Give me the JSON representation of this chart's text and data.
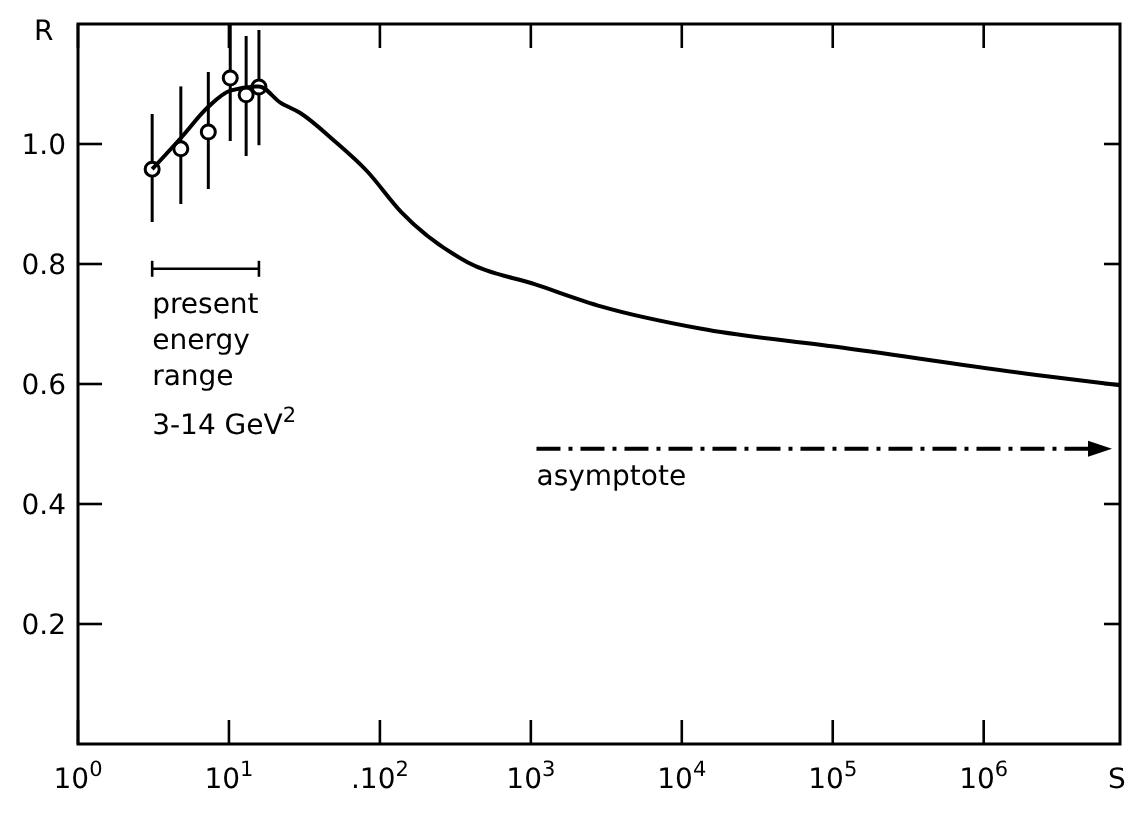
{
  "chart_data": {
    "type": "line",
    "xlabel": "S",
    "ylabel": "R",
    "log": "x",
    "xlim": [
      1,
      8000000
    ],
    "xticks": [
      {
        "value": 1,
        "label": "10$^{0}$"
      },
      {
        "value": 10,
        "label": "10$^{1}$"
      },
      {
        "value": 100,
        "label": ".10$^{2}$"
      },
      {
        "value": 1000,
        "label": "10$^{3}$"
      },
      {
        "value": 10000,
        "label": "10$^{4}$"
      },
      {
        "value": 100000,
        "label": "10$^{5}$"
      },
      {
        "value": 1000000,
        "label": "10$^{6}$"
      }
    ],
    "ylim": [
      0,
      1.2
    ],
    "yticks": [
      {
        "value": 0.2,
        "label": "0.2"
      },
      {
        "value": 0.4,
        "label": "0.4"
      },
      {
        "value": 0.6,
        "label": "0.6"
      },
      {
        "value": 0.8,
        "label": "0.8"
      },
      {
        "value": 1.0,
        "label": "1.0"
      }
    ],
    "grid": false,
    "series": [
      {
        "type": "scatter",
        "color": "#000000",
        "marker": "circle",
        "x": [
          3.1,
          4.8,
          7.3,
          10.2,
          13,
          15.8
        ],
        "values": [
          0.958,
          0.992,
          1.02,
          1.11,
          1.082,
          1.095
        ],
        "errors": [
          [
            0.87,
            1.05
          ],
          [
            0.9,
            1.096
          ],
          [
            0.925,
            1.12
          ],
          [
            1.005,
            1.2
          ],
          [
            0.98,
            1.18
          ],
          [
            0.998,
            1.19
          ]
        ]
      },
      {
        "color": "#000000",
        "line_style": "solid",
        "x": [
          3.1,
          4.8,
          7.3,
          10.2,
          15.8,
          21.9,
          29.5,
          50,
          82,
          138,
          380,
          1070,
          2950,
          13500,
          105000,
          2240000,
          8000000
        ],
        "values": [
          0.958,
          1.01,
          1.062,
          1.089,
          1.096,
          1.069,
          1.052,
          1.005,
          0.955,
          0.887,
          0.803,
          0.766,
          0.729,
          0.692,
          0.662,
          0.615,
          0.598
        ]
      }
    ],
    "annotations": [
      "present energy range",
      "3-14 GeV$^{2}$",
      "asymptote"
    ]
  }
}
